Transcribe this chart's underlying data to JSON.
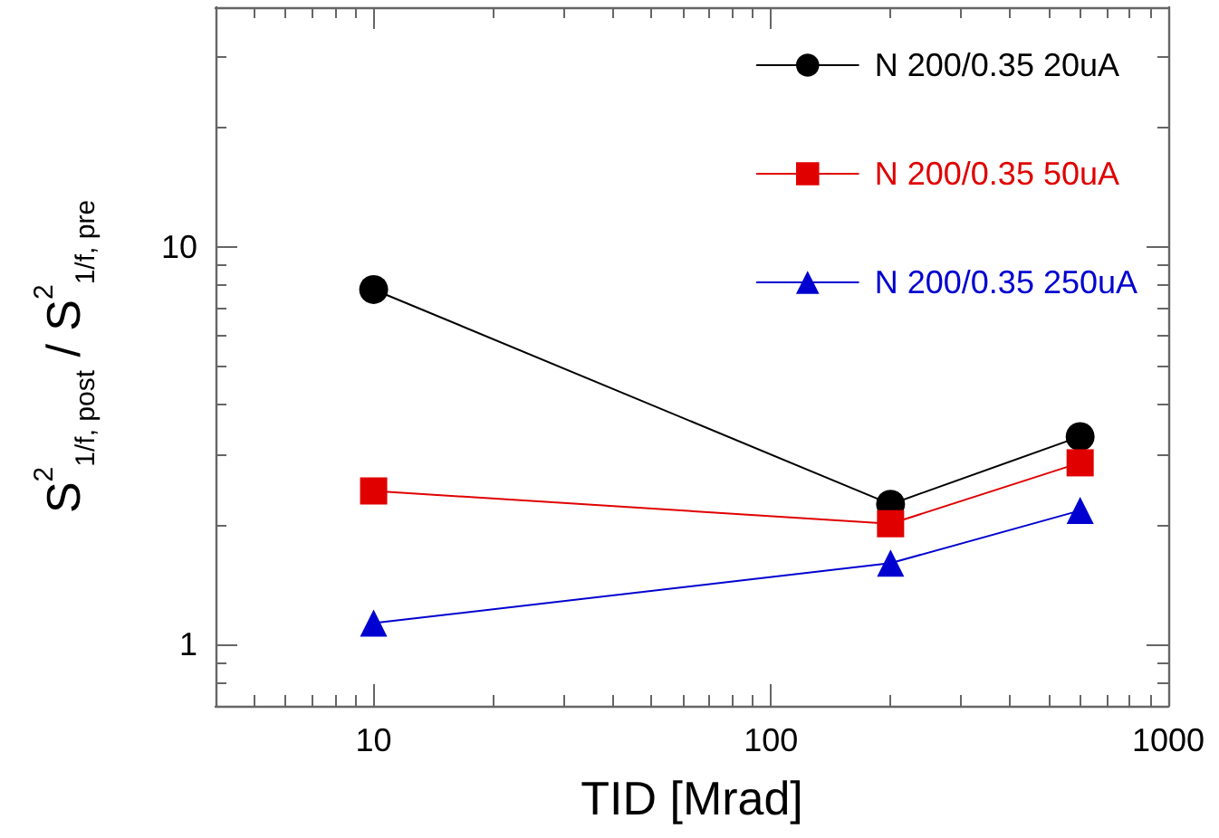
{
  "chart_data": {
    "type": "line",
    "xlabel": "TID [Mrad]",
    "ylabel": "S$^{2}$$_{1/f, post}$ / S$^{2}$$_{1/f, pre}$",
    "x": [
      10,
      200,
      600
    ],
    "series": [
      {
        "name": "N 200/0.35 20uA",
        "color": "#000000",
        "marker": "circle",
        "values": [
          7.8,
          2.25,
          3.33
        ]
      },
      {
        "name": "N 200/0.35 50uA",
        "color": "#e00000",
        "marker": "square",
        "values": [
          2.43,
          2.01,
          2.86
        ]
      },
      {
        "name": "N 200/0.35 250uA",
        "color": "#0000d0",
        "marker": "triangle",
        "values": [
          1.13,
          1.6,
          2.17
        ]
      }
    ],
    "log": "xy",
    "xlim": [
      4,
      1000
    ],
    "xticks": [
      10,
      100,
      1000
    ],
    "ylim": [
      0.7,
      40
    ],
    "yticks": [
      1,
      10
    ],
    "grid": false,
    "legend": "top right",
    "line_style": "solid"
  }
}
